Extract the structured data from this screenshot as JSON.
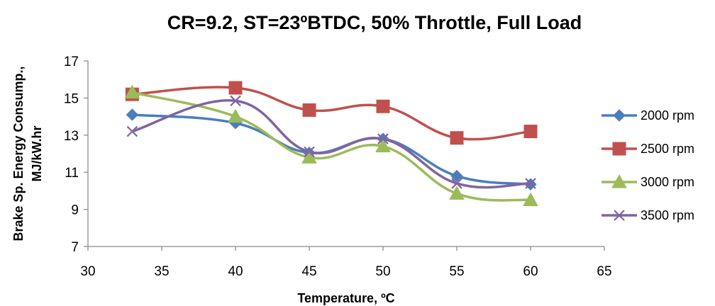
{
  "chart_data": {
    "type": "line",
    "title": "CR=9.2, ST=23ºBTDC, 50% Throttle, Full Load",
    "xlabel": "Temperature, ºC",
    "ylabel_line1": "Brake Sp. Energy Consump.,",
    "ylabel_line2": "MJ/kW.hr",
    "xlim": [
      30,
      65
    ],
    "ylim": [
      7,
      17
    ],
    "x_ticks": [
      30,
      35,
      40,
      45,
      50,
      55,
      60,
      65
    ],
    "y_ticks": [
      7,
      9,
      11,
      13,
      15,
      17
    ],
    "grid": false,
    "legend_position": "right",
    "x": [
      33,
      40,
      45,
      50,
      55,
      60
    ],
    "series": [
      {
        "name": "2000 rpm",
        "color": "#4a7ebb",
        "marker": "diamond",
        "values": [
          14.1,
          13.65,
          12.05,
          12.8,
          10.8,
          10.35
        ]
      },
      {
        "name": "2500 rpm",
        "color": "#c0504d",
        "marker": "square",
        "values": [
          15.2,
          15.55,
          14.35,
          14.55,
          12.85,
          13.2
        ]
      },
      {
        "name": "3000 rpm",
        "color": "#9bbb59",
        "marker": "triangle",
        "values": [
          15.3,
          14.0,
          11.8,
          12.4,
          9.85,
          9.5
        ]
      },
      {
        "name": "3500 rpm",
        "color": "#8064a2",
        "marker": "x",
        "values": [
          13.2,
          14.85,
          12.1,
          12.8,
          10.4,
          10.4
        ]
      }
    ]
  }
}
